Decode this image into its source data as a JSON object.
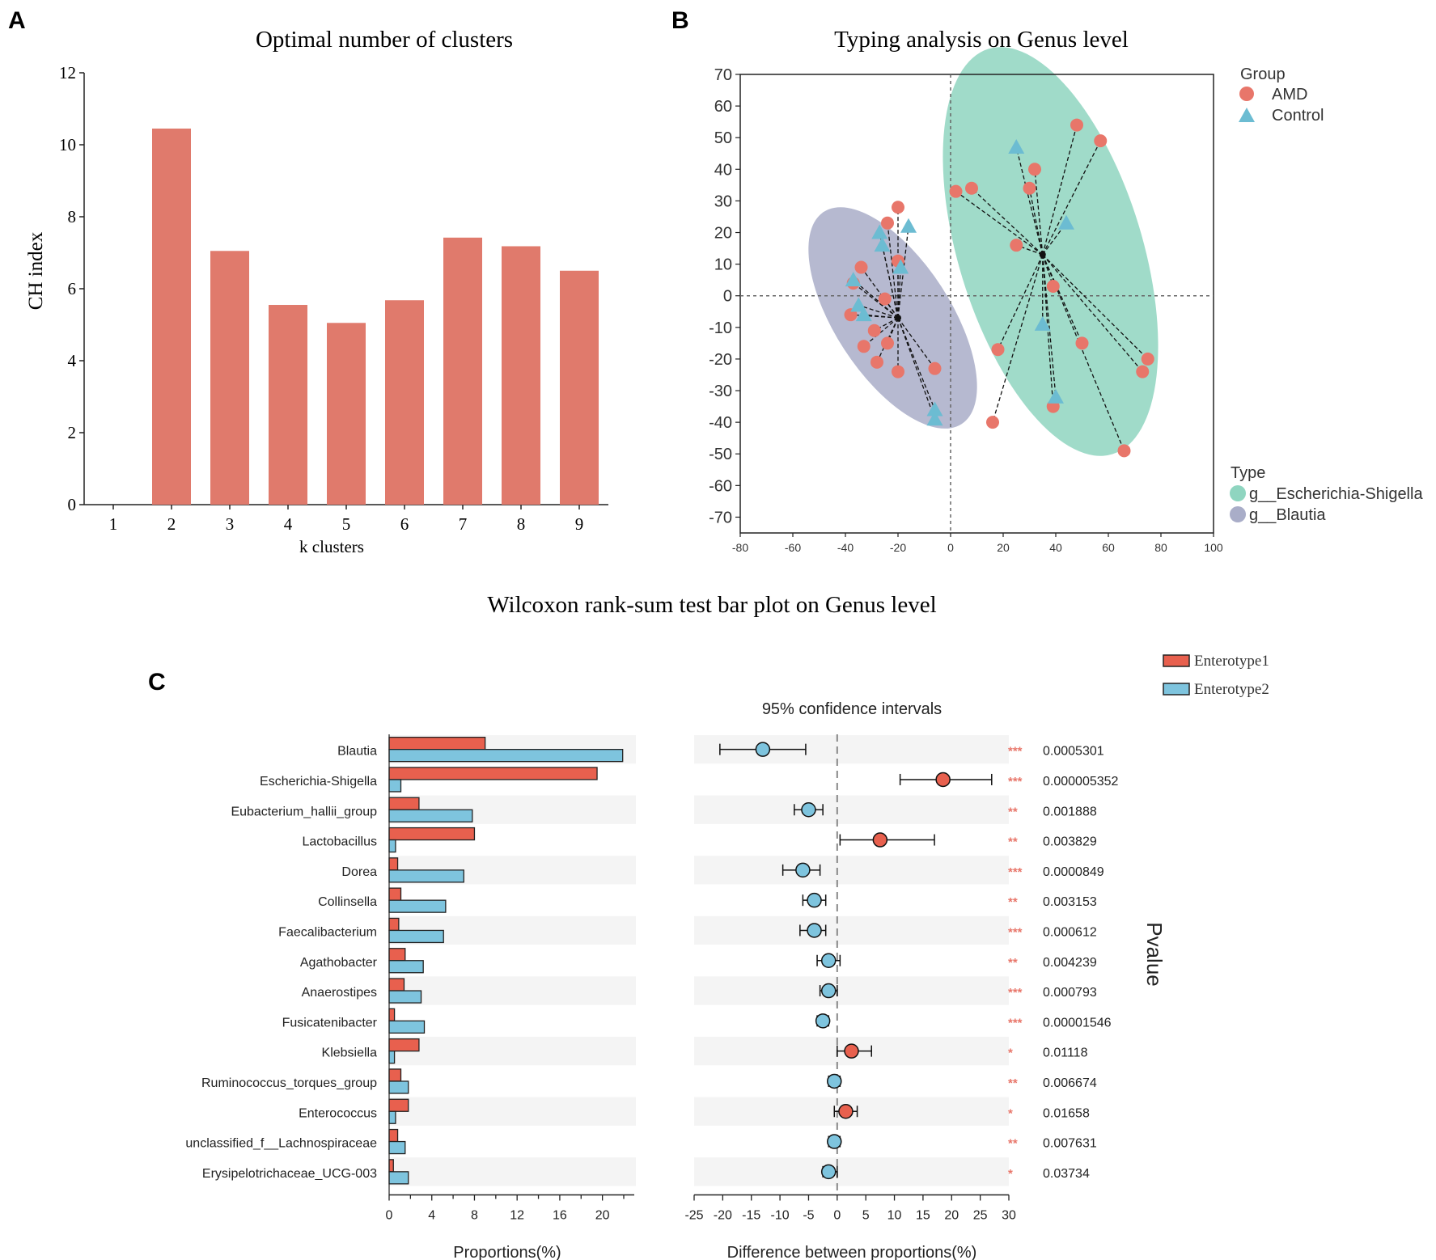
{
  "colors": {
    "bar_a": "#e07a6c",
    "amd": "#e8766a",
    "control": "#6cbcd2",
    "ellipse_es": "#8fd5c0",
    "ellipse_bl": "#a9adc8",
    "enterotype1": "#e8604e",
    "enterotype2": "#7ec4de",
    "stars": "#e8766a",
    "stripe": "#f4f4f4"
  },
  "panel_a": {
    "letter": "A",
    "chart_data": {
      "type": "bar",
      "title": "Optimal number of clusters",
      "xlabel": "k clusters",
      "ylabel": "CH index",
      "categories": [
        "1",
        "2",
        "3",
        "4",
        "5",
        "6",
        "7",
        "8",
        "9"
      ],
      "values": [
        0,
        10.45,
        7.05,
        5.55,
        5.05,
        5.68,
        7.42,
        7.18,
        6.5
      ],
      "ylim": [
        0,
        12
      ],
      "yticks": [
        "0",
        "2",
        "4",
        "6",
        "8",
        "10",
        "12"
      ]
    }
  },
  "panel_b": {
    "letter": "B",
    "chart_data": {
      "type": "scatter",
      "title": "Typing analysis on Genus level",
      "xlim": [
        -80,
        100
      ],
      "ylim": [
        -75,
        70
      ],
      "xticks": [
        "-80",
        "-60",
        "-40",
        "-20",
        "0",
        "20",
        "40",
        "60",
        "80",
        "100"
      ],
      "yticks": [
        "70",
        "60",
        "50",
        "40",
        "30",
        "20",
        "10",
        "0",
        "-10",
        "-20",
        "-30",
        "-40",
        "-50",
        "-60",
        "-70"
      ],
      "legend_group_title": "Group",
      "legend_group": [
        "AMD",
        "Control"
      ],
      "legend_type_title": "Type",
      "legend_type": [
        "g__Escherichia-Shigella",
        "g__Blautia"
      ],
      "centroids": {
        "escherichia": [
          35,
          13
        ],
        "blautia": [
          -20,
          -7
        ]
      },
      "ellipses": [
        {
          "name": "g__Escherichia-Shigella",
          "cx": 38,
          "cy": 14,
          "rx": 35,
          "ry": 67,
          "angle_deg": -17
        },
        {
          "name": "g__Blautia",
          "cx": -22,
          "cy": -7,
          "rx": 22,
          "ry": 40,
          "angle_deg": -33
        }
      ],
      "series": [
        {
          "name": "AMD",
          "cluster": "escherichia",
          "points": [
            [
              48,
              54
            ],
            [
              57,
              49
            ],
            [
              32,
              40
            ],
            [
              30,
              34
            ],
            [
              2,
              33
            ],
            [
              8,
              34
            ],
            [
              25,
              16
            ],
            [
              39,
              3
            ],
            [
              50,
              -15
            ],
            [
              18,
              -17
            ],
            [
              75,
              -20
            ],
            [
              73,
              -24
            ],
            [
              39,
              -35
            ],
            [
              16,
              -40
            ],
            [
              66,
              -49
            ]
          ]
        },
        {
          "name": "Control",
          "cluster": "escherichia",
          "points": [
            [
              25,
              47
            ],
            [
              44,
              23
            ],
            [
              35,
              -9
            ],
            [
              40,
              -32
            ]
          ]
        },
        {
          "name": "AMD",
          "cluster": "blautia",
          "points": [
            [
              -20,
              28
            ],
            [
              -24,
              23
            ],
            [
              -20,
              11
            ],
            [
              -34,
              9
            ],
            [
              -37,
              4
            ],
            [
              -25,
              -1
            ],
            [
              -38,
              -6
            ],
            [
              -29,
              -11
            ],
            [
              -24,
              -15
            ],
            [
              -33,
              -16
            ],
            [
              -28,
              -21
            ],
            [
              -20,
              -24
            ],
            [
              -6,
              -23
            ]
          ]
        },
        {
          "name": "Control",
          "cluster": "blautia",
          "points": [
            [
              -27,
              20
            ],
            [
              -16,
              22
            ],
            [
              -26,
              16
            ],
            [
              -19,
              9
            ],
            [
              -37,
              5
            ],
            [
              -35,
              -3
            ],
            [
              -33,
              -6
            ],
            [
              -6,
              -36
            ],
            [
              -6,
              -39
            ]
          ]
        }
      ]
    }
  },
  "panel_c": {
    "letter": "C",
    "title": "Wilcoxon rank-sum test bar plot on Genus level",
    "ci_title": "95% confidence intervals",
    "legend": [
      "Enterotype1",
      "Enterotype2"
    ],
    "pvalue_label": "Pvalue",
    "chart_data": {
      "type": "bar",
      "xlabel_left": "Proportions(%)",
      "xlabel_right": "Difference between proportions(%)",
      "xlim_left": [
        0,
        22
      ],
      "xticks_left": [
        "0",
        "4",
        "8",
        "12",
        "16",
        "20"
      ],
      "xlim_right": [
        -25,
        30
      ],
      "xticks_right": [
        "-25",
        "-20",
        "-15",
        "-10",
        "-5",
        "0",
        "5",
        "10",
        "15",
        "20",
        "25",
        "30"
      ],
      "categories": [
        "Blautia",
        "Escherichia-Shigella",
        "Eubacterium_hallii_group",
        "Lactobacillus",
        "Dorea",
        "Collinsella",
        "Faecalibacterium",
        "Agathobacter",
        "Anaerostipes",
        "Fusicatenibacter",
        "Klebsiella",
        "Ruminococcus_torques_group",
        "Enterococcus",
        "unclassified_f__Lachnospiraceae",
        "Erysipelotrichaceae_UCG-003"
      ],
      "series": [
        {
          "name": "Enterotype1",
          "values": [
            9.0,
            19.5,
            2.8,
            8.0,
            0.8,
            1.1,
            0.9,
            1.5,
            1.4,
            0.5,
            2.8,
            1.1,
            1.8,
            0.8,
            0.4
          ]
        },
        {
          "name": "Enterotype2",
          "values": [
            21.9,
            1.1,
            7.8,
            0.6,
            7.0,
            5.3,
            5.1,
            3.2,
            3.0,
            3.3,
            0.5,
            1.8,
            0.6,
            1.5,
            1.8
          ]
        }
      ],
      "difference": [
        -13,
        18.5,
        -5,
        7.5,
        -6,
        -4,
        -4,
        -1.5,
        -1.5,
        -2.5,
        2.5,
        -0.5,
        1.5,
        -0.5,
        -1.5
      ],
      "ci_low": [
        -20.5,
        11,
        -7.5,
        0.5,
        -9.5,
        -6,
        -6.5,
        -3.5,
        -3,
        -3.5,
        0,
        -1.5,
        -0.5,
        -1.5,
        -2.5
      ],
      "ci_high": [
        -5.5,
        27,
        -2.5,
        17,
        -3,
        -2,
        -2,
        0.5,
        0,
        -1.5,
        6,
        0.5,
        3.5,
        0.5,
        0
      ],
      "enriched_in": [
        "Enterotype2",
        "Enterotype1",
        "Enterotype2",
        "Enterotype1",
        "Enterotype2",
        "Enterotype2",
        "Enterotype2",
        "Enterotype2",
        "Enterotype2",
        "Enterotype2",
        "Enterotype1",
        "Enterotype2",
        "Enterotype1",
        "Enterotype2",
        "Enterotype2"
      ],
      "stars": [
        "***",
        "***",
        "**",
        "**",
        "***",
        "**",
        "***",
        "**",
        "***",
        "***",
        "*",
        "**",
        "*",
        "**",
        "*"
      ],
      "pvalues": [
        "0.0005301",
        "0.000005352",
        "0.001888",
        "0.003829",
        "0.0000849",
        "0.003153",
        "0.000612",
        "0.004239",
        "0.000793",
        "0.00001546",
        "0.01118",
        "0.006674",
        "0.01658",
        "0.007631",
        "0.03734"
      ]
    }
  }
}
